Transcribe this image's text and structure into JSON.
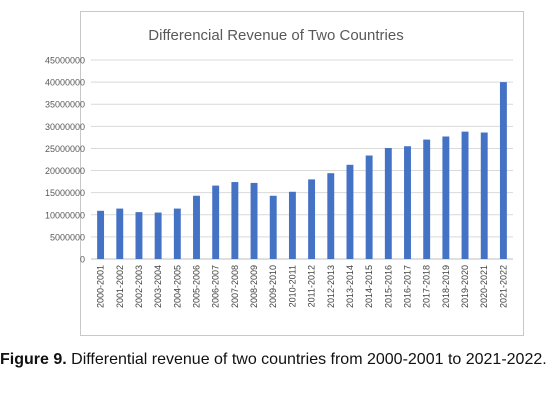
{
  "chart_data": {
    "type": "bar",
    "title": "Differencial Revenue of Two Countries",
    "xlabel": "",
    "ylabel": "",
    "ylim": [
      0,
      45000000
    ],
    "yticks": [
      0,
      5000000,
      10000000,
      15000000,
      20000000,
      25000000,
      30000000,
      35000000,
      40000000,
      45000000
    ],
    "grid": true,
    "legend": "none",
    "bar_color": "#4472c4",
    "categories": [
      "2000-2001",
      "2001-2002",
      "2002-2003",
      "2003-2004",
      "2004-2005",
      "2005-2006",
      "2006-2007",
      "2007-2008",
      "2008-2009",
      "2009-2010",
      "2010-2011",
      "2011-2012",
      "2012-2013",
      "2013-2014",
      "2014-2015",
      "2015-2016",
      "2016-2017",
      "2017-2018",
      "2018-2019",
      "2019-2020",
      "2020-2021",
      "2021-2022"
    ],
    "values": [
      10900000,
      11400000,
      10600000,
      10500000,
      11400000,
      14300000,
      16600000,
      17400000,
      17200000,
      14300000,
      15200000,
      18000000,
      19400000,
      21300000,
      23400000,
      25100000,
      25500000,
      27000000,
      27700000,
      28800000,
      28600000,
      40000000
    ]
  },
  "caption": {
    "label": "Figure 9.",
    "text": " Differential revenue of two countries from 2000-2001 to 2021-2022."
  }
}
